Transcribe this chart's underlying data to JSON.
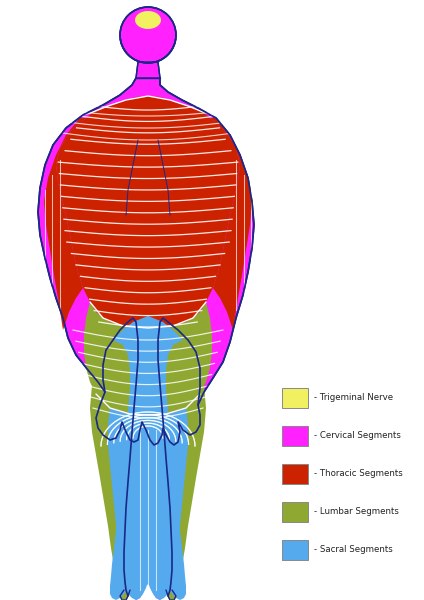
{
  "background_color": "#ffffff",
  "colors": {
    "trigeminal": "#f0f060",
    "cervical": "#ff22ff",
    "thoracic": "#cc2200",
    "lumbar": "#8fa832",
    "sacral": "#55aaee",
    "outline": "#1a2888",
    "white_line": "#ffffff"
  },
  "legend": [
    {
      "color": "#f0f060",
      "label": "Trigeminal Nerve"
    },
    {
      "color": "#ff22ff",
      "label": "Cervical Segments"
    },
    {
      "color": "#cc2200",
      "label": "Thoracic Segments"
    },
    {
      "color": "#8fa832",
      "label": "Lumbar Segments"
    },
    {
      "color": "#55aaee",
      "label": "Sacral Segments"
    }
  ],
  "fig_w": 4.24,
  "fig_h": 6.0,
  "dpi": 100
}
